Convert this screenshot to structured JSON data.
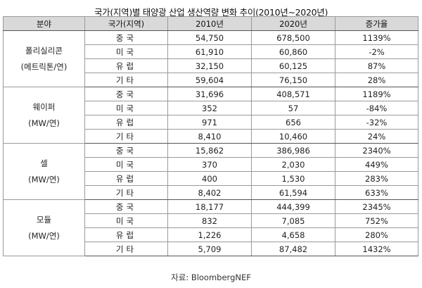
{
  "title": "국가(지역)별 태양광 산업 생산역량 변화 추이(2010년~2020년)",
  "headers": [
    "분야",
    "국가(지역)",
    "2010년",
    "2020년",
    "증가율"
  ],
  "groups": [
    {
      "sector": "폴리실리콘",
      "unit": "(메트릭톤/연)",
      "rows": [
        {
          "country": "중국",
          "y2010": "54,750",
          "y2020": "678,500",
          "rate": "1139%"
        },
        {
          "country": "미국",
          "y2010": "61,910",
          "y2020": "60,860",
          "rate": "-2%"
        },
        {
          "country": "유럽",
          "y2010": "32,150",
          "y2020": "60,125",
          "rate": "87%"
        },
        {
          "country": "기타",
          "y2010": "59,604",
          "y2020": "76,150",
          "rate": "28%"
        }
      ]
    },
    {
      "sector": "웨이퍼",
      "unit": "(MW/연)",
      "rows": [
        {
          "country": "중국",
          "y2010": "31,696",
          "y2020": "408,571",
          "rate": "1189%"
        },
        {
          "country": "미국",
          "y2010": "352",
          "y2020": "57",
          "rate": "-84%"
        },
        {
          "country": "유럽",
          "y2010": "971",
          "y2020": "656",
          "rate": "-32%"
        },
        {
          "country": "기타",
          "y2010": "8,410",
          "y2020": "10,460",
          "rate": "24%"
        }
      ]
    },
    {
      "sector": "셀",
      "unit": "(MW/연)",
      "rows": [
        {
          "country": "중국",
          "y2010": "15,862",
          "y2020": "386,986",
          "rate": "2340%"
        },
        {
          "country": "미국",
          "y2010": "370",
          "y2020": "2,030",
          "rate": "449%"
        },
        {
          "country": "유럽",
          "y2010": "400",
          "y2020": "1,530",
          "rate": "283%"
        },
        {
          "country": "기타",
          "y2010": "8,402",
          "y2020": "61,594",
          "rate": "633%"
        }
      ]
    },
    {
      "sector": "모듈",
      "unit": "(MW/연)",
      "rows": [
        {
          "country": "중국",
          "y2010": "18,177",
          "y2020": "444,399",
          "rate": "2345%"
        },
        {
          "country": "미국",
          "y2010": "832",
          "y2020": "7,085",
          "rate": "752%"
        },
        {
          "country": "유럽",
          "y2010": "1,226",
          "y2020": "4,658",
          "rate": "280%"
        },
        {
          "country": "기타",
          "y2010": "5,709",
          "y2020": "87,482",
          "rate": "1432%"
        }
      ]
    }
  ],
  "source": "자료: BloombergNEF"
}
